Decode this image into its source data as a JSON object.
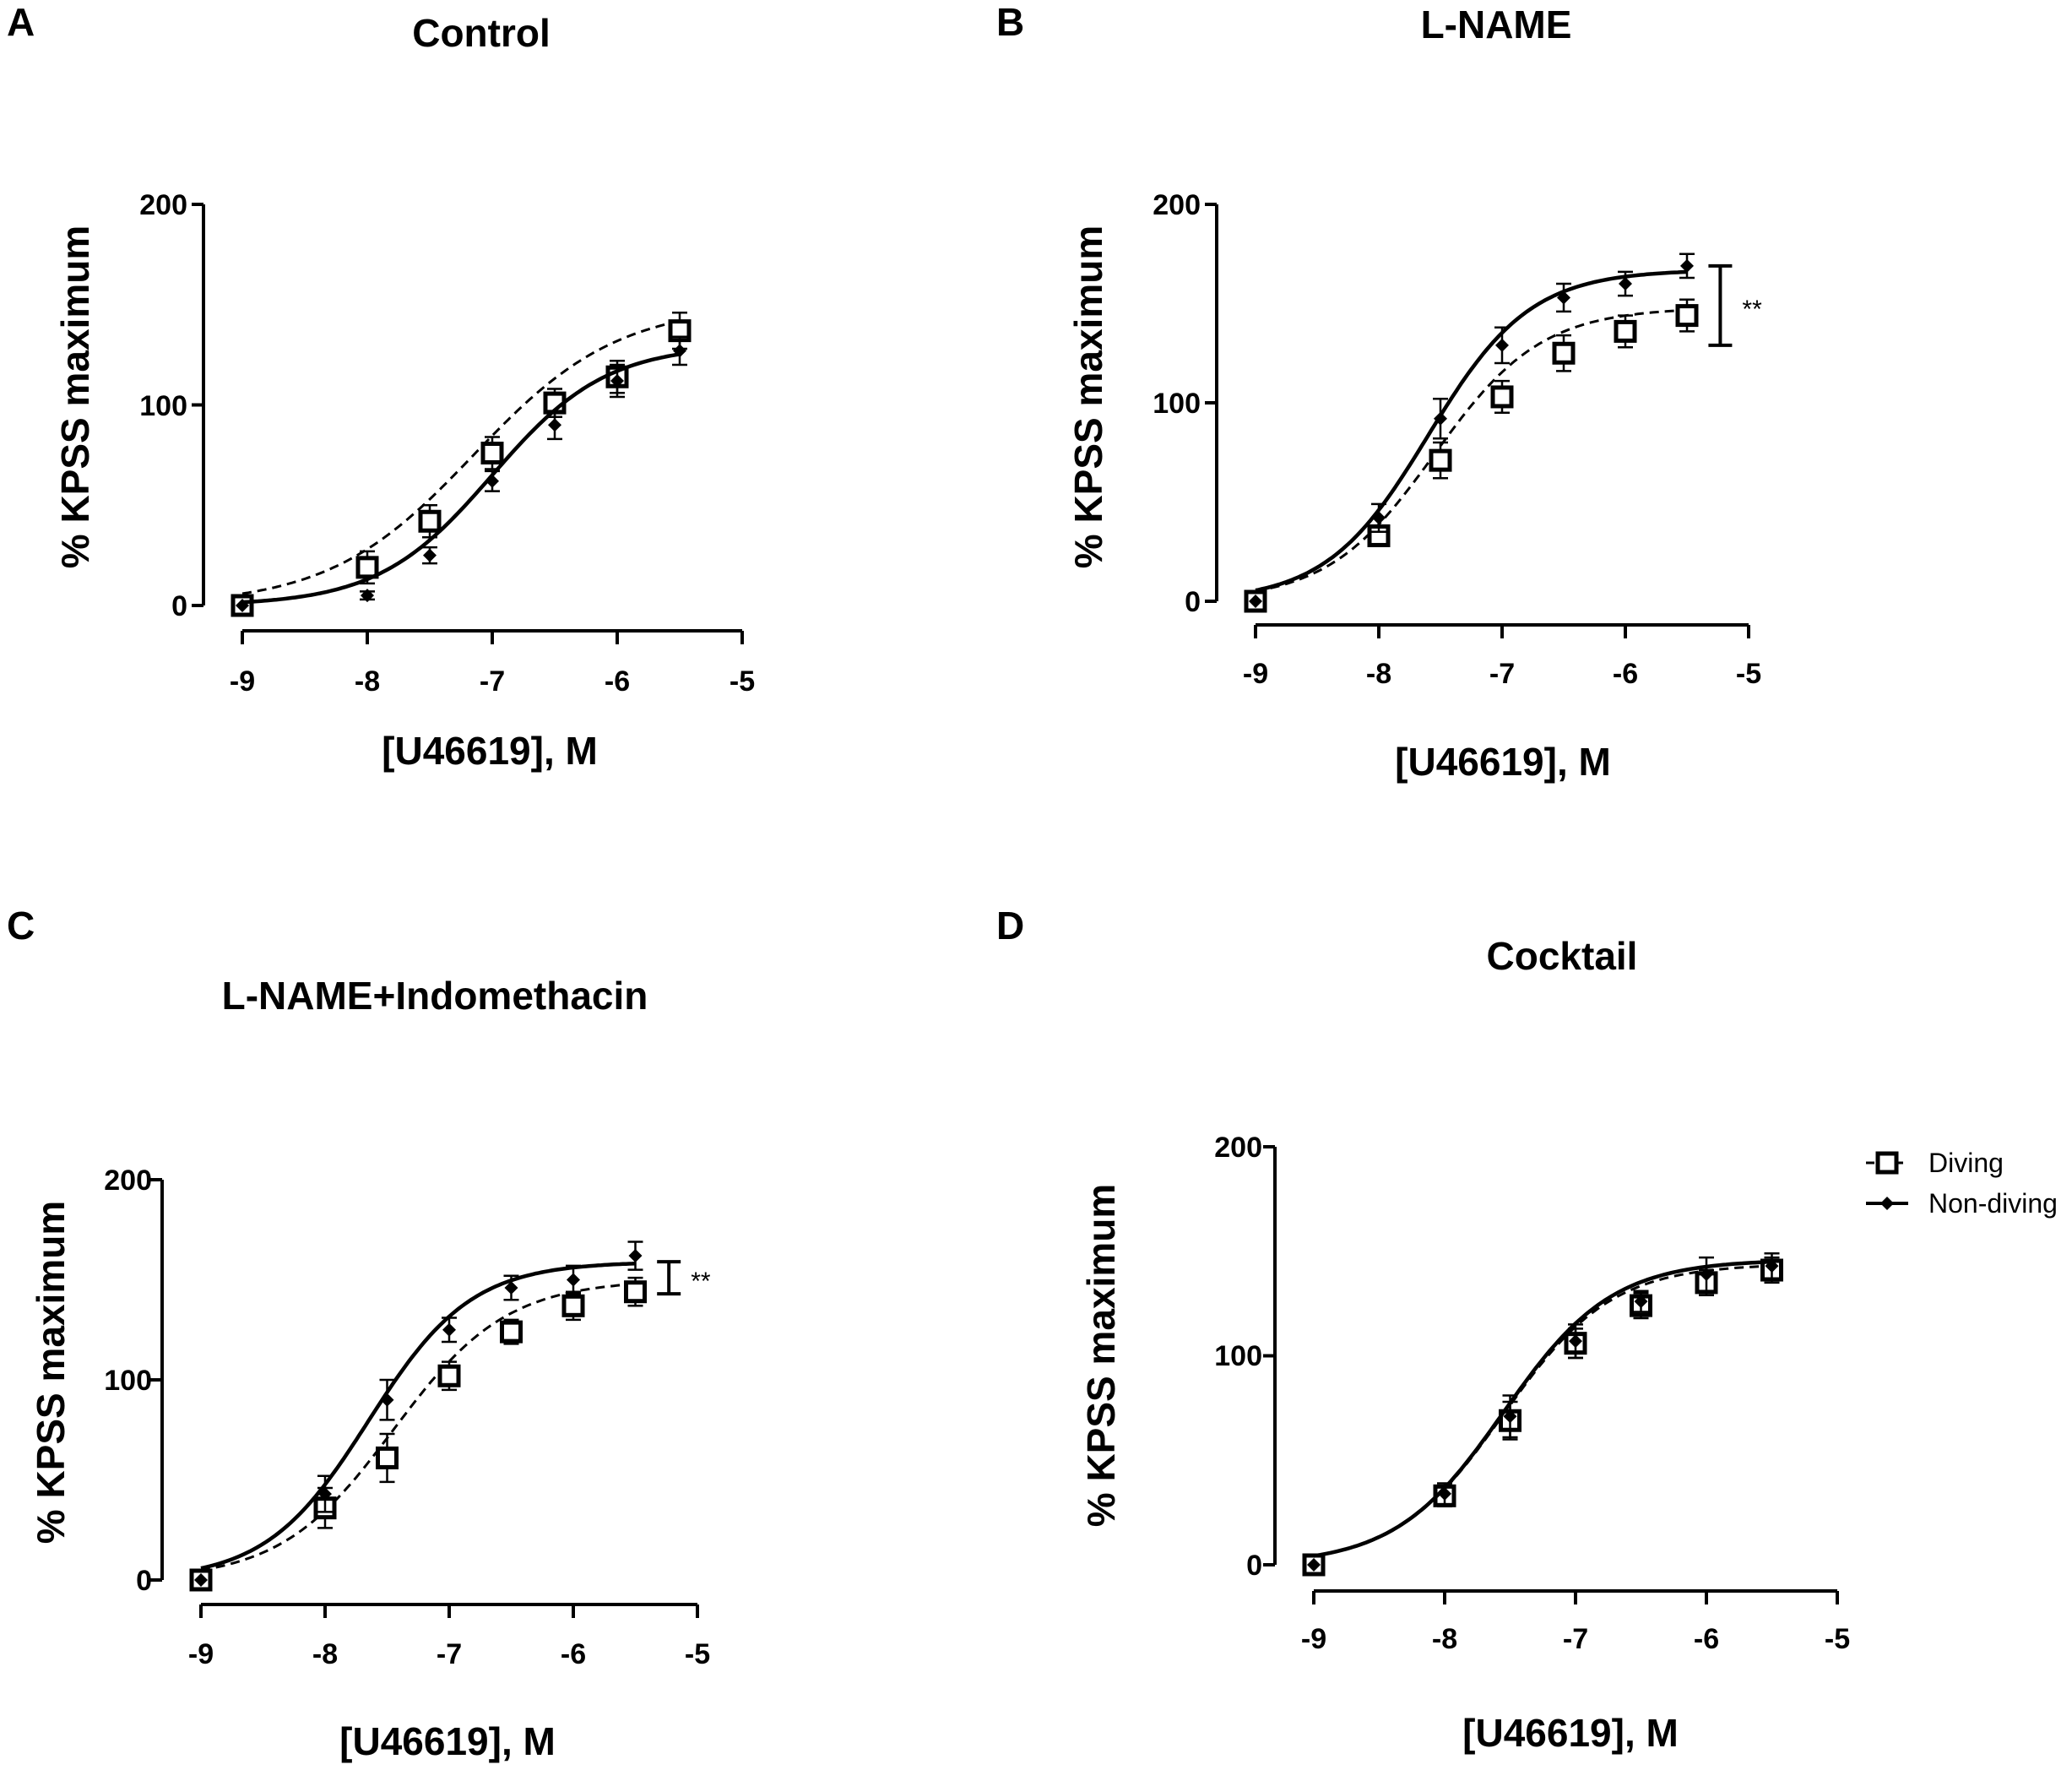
{
  "figure": {
    "legend": [
      {
        "label": "Diving",
        "marker": "open-square",
        "line": "dashed"
      },
      {
        "label": "Non-diving",
        "marker": "filled-diamond",
        "line": "solid"
      }
    ]
  },
  "chart_data": [
    {
      "type": "line",
      "panel_letter": "A",
      "title": "Control",
      "xlabel": "[U46619], M",
      "ylabel": "% KPSS maximum",
      "xlim": [
        -9,
        -5
      ],
      "ylim": [
        0,
        200
      ],
      "xticks": [
        -9,
        -8,
        -7,
        -6,
        -5
      ],
      "xtick_labels": [
        "-9",
        "-8",
        "-7",
        "-6",
        "-5"
      ],
      "yticks": [
        0,
        100,
        200
      ],
      "ytick_labels": [
        "0",
        "100",
        "200"
      ],
      "significance": null,
      "series": [
        {
          "name": "Diving",
          "x": [
            -9,
            -8,
            -7.5,
            -7,
            -6.5,
            -6,
            -5.5
          ],
          "y": [
            0,
            19,
            42,
            76,
            101,
            114,
            137
          ],
          "err": [
            2,
            8,
            8,
            8,
            7,
            8,
            9
          ],
          "fit": {
            "bottom": 0,
            "top": 150,
            "logEC50": -7.15,
            "hill": 0.75
          }
        },
        {
          "name": "Non-diving",
          "x": [
            -9,
            -8,
            -7.5,
            -7,
            -6.5,
            -6,
            -5.5
          ],
          "y": [
            0,
            5,
            25,
            62,
            90,
            112,
            127
          ],
          "err": [
            1,
            2,
            4,
            5,
            7,
            8,
            7
          ],
          "fit": {
            "bottom": 0,
            "top": 130,
            "logEC50": -7.0,
            "hill": 0.95
          }
        }
      ]
    },
    {
      "type": "line",
      "panel_letter": "B",
      "title": "L-NAME",
      "xlabel": "[U46619], M",
      "ylabel": "% KPSS maximum",
      "xlim": [
        -9,
        -5
      ],
      "ylim": [
        0,
        200
      ],
      "xticks": [
        -9,
        -8,
        -7,
        -6,
        -5
      ],
      "xtick_labels": [
        "-9",
        "-8",
        "-7",
        "-6",
        "-5"
      ],
      "yticks": [
        0,
        100,
        200
      ],
      "ytick_labels": [
        "0",
        "100",
        "200"
      ],
      "significance": {
        "label": "**",
        "y_low": 129,
        "y_high": 169
      },
      "series": [
        {
          "name": "Diving",
          "x": [
            -9,
            -8,
            -7.5,
            -7,
            -6.5,
            -6,
            -5.5
          ],
          "y": [
            0,
            33,
            71,
            103,
            125,
            136,
            144
          ],
          "err": [
            2,
            4,
            9,
            8,
            9,
            8,
            8
          ],
          "fit": {
            "bottom": 0,
            "top": 148,
            "logEC50": -7.55,
            "hill": 1.0
          }
        },
        {
          "name": "Non-diving",
          "x": [
            -9,
            -8,
            -7.5,
            -7,
            -6.5,
            -6,
            -5.5
          ],
          "y": [
            0,
            42,
            92,
            129,
            153,
            160,
            169
          ],
          "err": [
            1,
            7,
            10,
            9,
            7,
            6,
            6
          ],
          "fit": {
            "bottom": 0,
            "top": 167,
            "logEC50": -7.6,
            "hill": 1.05
          }
        }
      ]
    },
    {
      "type": "line",
      "panel_letter": "C",
      "title": "L-NAME+Indomethacin",
      "xlabel": "[U46619], M",
      "ylabel": "% KPSS maximum",
      "xlim": [
        -9,
        -5
      ],
      "ylim": [
        0,
        200
      ],
      "xticks": [
        -9,
        -8,
        -7,
        -6,
        -5
      ],
      "xtick_labels": [
        "-9",
        "-8",
        "-7",
        "-6",
        "-5"
      ],
      "yticks": [
        0,
        100,
        200
      ],
      "ytick_labels": [
        "0",
        "100",
        "200"
      ],
      "significance": {
        "label": "**",
        "y_low": 143,
        "y_high": 159
      },
      "series": [
        {
          "name": "Diving",
          "x": [
            -9,
            -8,
            -7.5,
            -7,
            -6.5,
            -6,
            -5.5
          ],
          "y": [
            0,
            36,
            61,
            102,
            124,
            137,
            144
          ],
          "err": [
            2,
            10,
            12,
            7,
            6,
            7,
            7
          ],
          "fit": {
            "bottom": 0,
            "top": 150,
            "logEC50": -7.45,
            "hill": 0.95
          }
        },
        {
          "name": "Non-diving",
          "x": [
            -9,
            -8,
            -7.5,
            -7,
            -6.5,
            -6,
            -5.5
          ],
          "y": [
            0,
            43,
            90,
            125,
            146,
            150,
            162
          ],
          "err": [
            1,
            9,
            10,
            6,
            6,
            7,
            7
          ],
          "fit": {
            "bottom": 0,
            "top": 159,
            "logEC50": -7.65,
            "hill": 1.05
          }
        }
      ]
    },
    {
      "type": "line",
      "panel_letter": "D",
      "title": "Cocktail",
      "xlabel": "[U46619], M",
      "ylabel": "% KPSS maximum",
      "xlim": [
        -9,
        -5
      ],
      "ylim": [
        0,
        200
      ],
      "xticks": [
        -9,
        -8,
        -7,
        -6,
        -5
      ],
      "xtick_labels": [
        "-9",
        "-8",
        "-7",
        "-6",
        "-5"
      ],
      "yticks": [
        0,
        100,
        200
      ],
      "ytick_labels": [
        "0",
        "100",
        "200"
      ],
      "significance": null,
      "legend_position": "top-right",
      "series": [
        {
          "name": "Diving",
          "x": [
            -9,
            -8,
            -7.5,
            -7,
            -6.5,
            -6,
            -5.5
          ],
          "y": [
            0,
            33,
            69,
            106,
            124,
            135,
            141
          ],
          "err": [
            2,
            5,
            9,
            7,
            6,
            6,
            6
          ],
          "fit": {
            "bottom": 0,
            "top": 144,
            "logEC50": -7.55,
            "hill": 1.05
          }
        },
        {
          "name": "Non-diving",
          "x": [
            -9,
            -8,
            -7.5,
            -7,
            -6.5,
            -6,
            -5.5
          ],
          "y": [
            0,
            34,
            71,
            107,
            126,
            139,
            143
          ],
          "err": [
            1,
            5,
            10,
            8,
            5,
            8,
            6
          ],
          "fit": {
            "bottom": 0,
            "top": 146,
            "logEC50": -7.55,
            "hill": 1.05
          }
        }
      ]
    }
  ]
}
